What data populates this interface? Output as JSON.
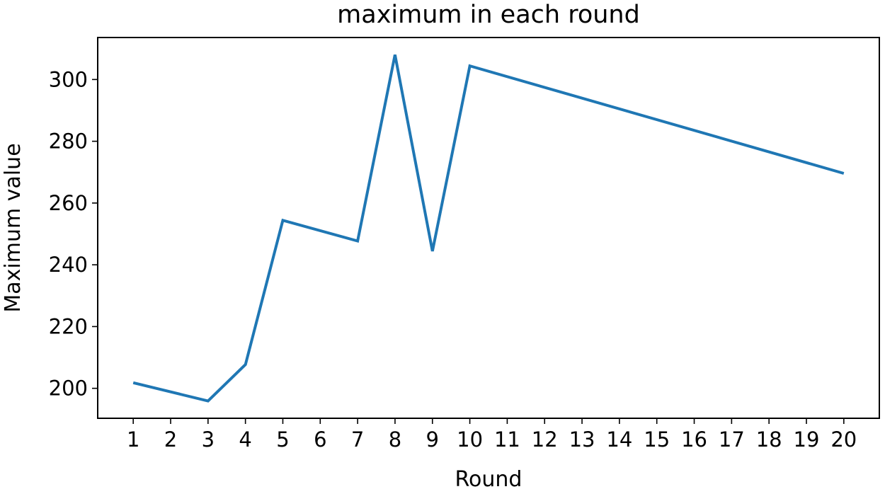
{
  "chart_data": {
    "type": "line",
    "title": "maximum in each round",
    "xlabel": "Round",
    "ylabel": "Maximum value",
    "x": [
      1,
      3,
      4,
      5,
      7,
      8,
      9,
      10,
      20
    ],
    "series": [
      {
        "values": [
          201.8,
          195.9,
          207.7,
          254.4,
          247.7,
          308.0,
          244.4,
          304.4,
          269.6
        ],
        "color": "#1f77b4"
      }
    ],
    "xticks": [
      1,
      2,
      3,
      4,
      5,
      6,
      7,
      8,
      9,
      10,
      11,
      12,
      13,
      14,
      15,
      16,
      17,
      18,
      19,
      20
    ],
    "yticks": [
      200,
      220,
      240,
      260,
      280,
      300
    ],
    "xlim": [
      0.05,
      20.95
    ],
    "ylim": [
      190.3,
      313.6
    ],
    "grid": false,
    "legend": "none"
  }
}
